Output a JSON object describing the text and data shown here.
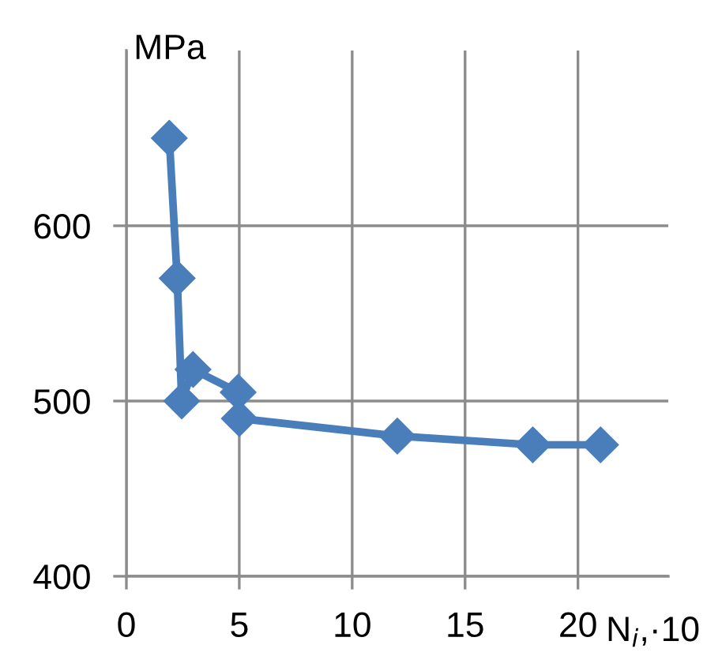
{
  "chart_data": {
    "type": "line",
    "ylabel": "MPa",
    "xlabel": "N$_{i}$,·10",
    "x": [
      1.9,
      2.25,
      2.45,
      2.95,
      4.95,
      5,
      12,
      18,
      21
    ],
    "series": [
      {
        "color": "#4a7ebb",
        "values": [
          650,
          570,
          500,
          518,
          505,
          490,
          480,
          475,
          475
        ]
      }
    ],
    "xlim": [
      0,
      24
    ],
    "ylim": [
      400,
      700
    ],
    "xticks": [
      0,
      5,
      10,
      15,
      20
    ],
    "yticks": [
      400,
      500,
      600
    ],
    "grid": true,
    "marker": "diamond",
    "line_style": "solid",
    "legend": false
  }
}
